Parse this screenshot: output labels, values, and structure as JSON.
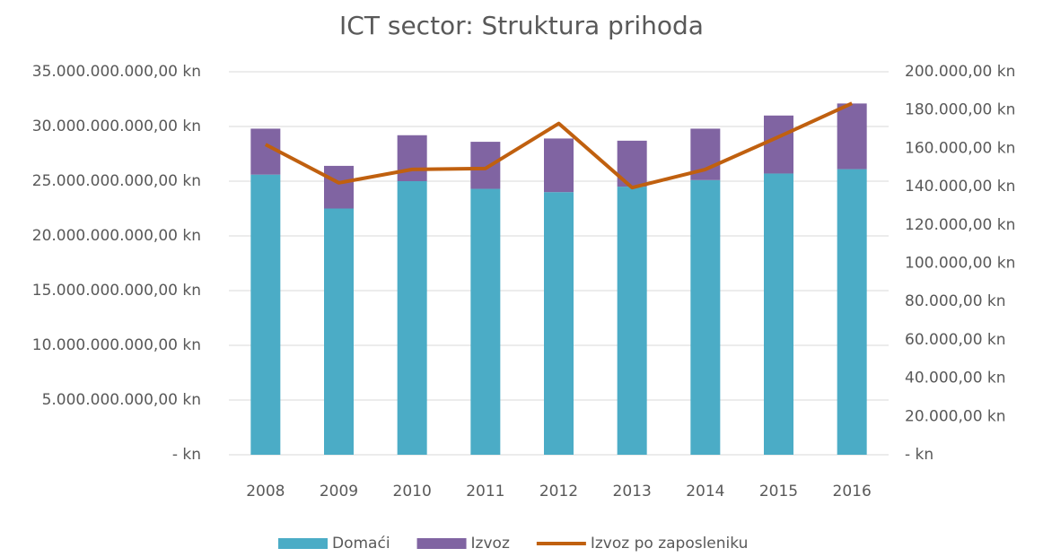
{
  "chart_data": {
    "type": "bar",
    "stacked": true,
    "title": "ICT sector: Struktura prihoda",
    "categories": [
      "2008",
      "2009",
      "2010",
      "2011",
      "2012",
      "2013",
      "2014",
      "2015",
      "2016"
    ],
    "series": [
      {
        "name": "Domaći",
        "type": "bar",
        "color": "#4bacc6",
        "values": [
          25600000000,
          22500000000,
          25000000000,
          24300000000,
          24000000000,
          24500000000,
          25100000000,
          25700000000,
          26100000000
        ]
      },
      {
        "name": "Izvoz",
        "type": "bar",
        "color": "#8064a2",
        "values": [
          4200000000,
          3900000000,
          4200000000,
          4300000000,
          4900000000,
          4200000000,
          4700000000,
          5300000000,
          6000000000
        ]
      },
      {
        "name": "Izvoz po zaposleniku",
        "type": "line",
        "axis": "y2",
        "color": "#c0600f",
        "values": [
          162000,
          142000,
          149000,
          149500,
          173000,
          139500,
          149000,
          166000,
          183500
        ]
      }
    ],
    "ylim": [
      0,
      35000000000
    ],
    "yticks": [
      {
        "value": 0,
        "label": "-   kn"
      },
      {
        "value": 5000000000,
        "label": "5.000.000.000,00 kn"
      },
      {
        "value": 10000000000,
        "label": "10.000.000.000,00 kn"
      },
      {
        "value": 15000000000,
        "label": "15.000.000.000,00 kn"
      },
      {
        "value": 20000000000,
        "label": "20.000.000.000,00 kn"
      },
      {
        "value": 25000000000,
        "label": "25.000.000.000,00 kn"
      },
      {
        "value": 30000000000,
        "label": "30.000.000.000,00 kn"
      },
      {
        "value": 35000000000,
        "label": "35.000.000.000,00 kn"
      }
    ],
    "y2lim": [
      0,
      200000
    ],
    "y2ticks": [
      {
        "value": 0,
        "label": "-   kn"
      },
      {
        "value": 20000,
        "label": "20.000,00 kn"
      },
      {
        "value": 40000,
        "label": "40.000,00 kn"
      },
      {
        "value": 60000,
        "label": "60.000,00 kn"
      },
      {
        "value": 80000,
        "label": "80.000,00 kn"
      },
      {
        "value": 100000,
        "label": "100.000,00 kn"
      },
      {
        "value": 120000,
        "label": "120.000,00 kn"
      },
      {
        "value": 140000,
        "label": "140.000,00 kn"
      },
      {
        "value": 160000,
        "label": "160.000,00 kn"
      },
      {
        "value": 180000,
        "label": "180.000,00 kn"
      },
      {
        "value": 200000,
        "label": "200.000,00 kn"
      }
    ],
    "grid": true,
    "legend": "bottom"
  }
}
